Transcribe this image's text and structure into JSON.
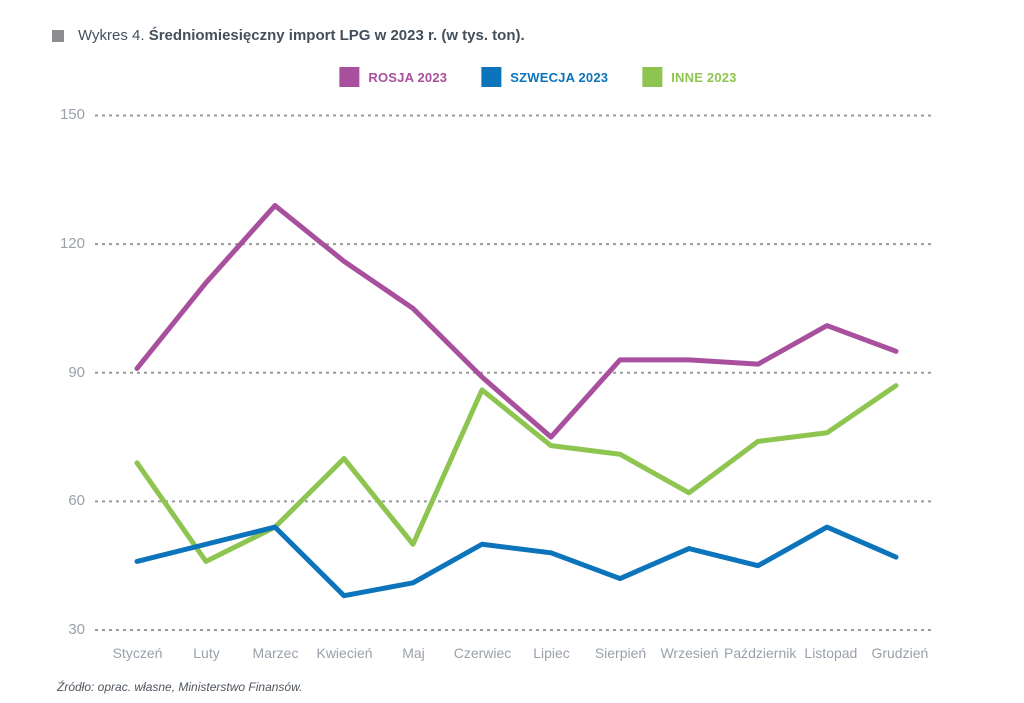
{
  "title": {
    "prefix": "Wykres 4. ",
    "main": "Średniomiesięczny import LPG w 2023 r. (w tys. ton)."
  },
  "legend": [
    {
      "label": "ROSJA 2023",
      "color": "#a8509e"
    },
    {
      "label": "SZWECJA 2023",
      "color": "#0b74bb"
    },
    {
      "label": "INNE 2023",
      "color": "#8ec550"
    }
  ],
  "source_note": "Źródło: oprac. własne, Ministerstwo Finansów.",
  "chart_data": {
    "type": "line",
    "title": "Średniomiesięczny import LPG w 2023 r. (w tys. ton)",
    "categories": [
      "Styczeń",
      "Luty",
      "Marzec",
      "Kwiecień",
      "Maj",
      "Czerwiec",
      "Lipiec",
      "Sierpień",
      "Wrzesień",
      "Październik",
      "Listopad",
      "Grudzień"
    ],
    "series": [
      {
        "name": "ROSJA 2023",
        "color": "#a8509e",
        "values": [
          91,
          111,
          129,
          116,
          105,
          89,
          75,
          93,
          93,
          92,
          101,
          95
        ]
      },
      {
        "name": "SZWECJA 2023",
        "color": "#0b74bb",
        "values": [
          46,
          50,
          54,
          38,
          41,
          50,
          48,
          42,
          49,
          45,
          54,
          47
        ]
      },
      {
        "name": "INNE 2023",
        "color": "#8ec550",
        "values": [
          69,
          46,
          54,
          70,
          50,
          86,
          73,
          71,
          62,
          74,
          76,
          87
        ]
      }
    ],
    "yticks": [
      30,
      60,
      90,
      120,
      150
    ],
    "ylim": [
      30,
      150
    ],
    "grid": "horizontal-dashed",
    "gridline_color": "#9b9b9b",
    "legend_position": "top-center"
  }
}
